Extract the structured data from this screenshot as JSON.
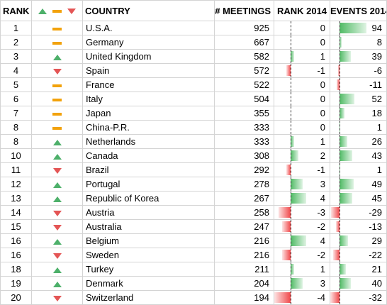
{
  "headers": {
    "rank": "RANK",
    "country": "COUNTRY",
    "meetings": "# MEETINGS",
    "rank_2014": "RANK 2014",
    "events_2014": "EVENTS 2014"
  },
  "colors": {
    "up": "#4db06a",
    "down": "#e45555",
    "same": "#f2a20c",
    "bar_pos": "#4fba64",
    "bar_neg": "#f0484a"
  },
  "rank_change_scale": {
    "min": -4,
    "max": 4
  },
  "events_change_scale": {
    "min": -32,
    "max": 94
  },
  "rows": [
    {
      "rank": "1",
      "trend": "same",
      "country": "U.S.A.",
      "meetings": "925",
      "rank_change": 0,
      "rank_change_label": "0",
      "events_change": 94,
      "events_change_label": "94"
    },
    {
      "rank": "2",
      "trend": "same",
      "country": "Germany",
      "meetings": "667",
      "rank_change": 0,
      "rank_change_label": "0",
      "events_change": 8,
      "events_change_label": "8"
    },
    {
      "rank": "3",
      "trend": "up",
      "country": "United Kingdom",
      "meetings": "582",
      "rank_change": 1,
      "rank_change_label": "1",
      "events_change": 39,
      "events_change_label": "39"
    },
    {
      "rank": "4",
      "trend": "down",
      "country": "Spain",
      "meetings": "572",
      "rank_change": -1,
      "rank_change_label": "-1",
      "events_change": -6,
      "events_change_label": "-6"
    },
    {
      "rank": "5",
      "trend": "same",
      "country": "France",
      "meetings": "522",
      "rank_change": 0,
      "rank_change_label": "0",
      "events_change": -11,
      "events_change_label": "-11"
    },
    {
      "rank": "6",
      "trend": "same",
      "country": "Italy",
      "meetings": "504",
      "rank_change": 0,
      "rank_change_label": "0",
      "events_change": 52,
      "events_change_label": "52"
    },
    {
      "rank": "7",
      "trend": "same",
      "country": "Japan",
      "meetings": "355",
      "rank_change": 0,
      "rank_change_label": "0",
      "events_change": 18,
      "events_change_label": "18"
    },
    {
      "rank": "8",
      "trend": "same",
      "country": "China-P.R.",
      "meetings": "333",
      "rank_change": 0,
      "rank_change_label": "0",
      "events_change": 1,
      "events_change_label": "1"
    },
    {
      "rank": "8",
      "trend": "up",
      "country": "Netherlands",
      "meetings": "333",
      "rank_change": 1,
      "rank_change_label": "1",
      "events_change": 26,
      "events_change_label": "26"
    },
    {
      "rank": "10",
      "trend": "up",
      "country": "Canada",
      "meetings": "308",
      "rank_change": 2,
      "rank_change_label": "2",
      "events_change": 43,
      "events_change_label": "43"
    },
    {
      "rank": "11",
      "trend": "down",
      "country": "Brazil",
      "meetings": "292",
      "rank_change": -1,
      "rank_change_label": "-1",
      "events_change": 1,
      "events_change_label": "1"
    },
    {
      "rank": "12",
      "trend": "up",
      "country": "Portugal",
      "meetings": "278",
      "rank_change": 3,
      "rank_change_label": "3",
      "events_change": 49,
      "events_change_label": "49"
    },
    {
      "rank": "13",
      "trend": "up",
      "country": "Republic of Korea",
      "meetings": "267",
      "rank_change": 4,
      "rank_change_label": "4",
      "events_change": 45,
      "events_change_label": "45"
    },
    {
      "rank": "14",
      "trend": "down",
      "country": "Austria",
      "meetings": "258",
      "rank_change": -3,
      "rank_change_label": "-3",
      "events_change": -29,
      "events_change_label": "-29"
    },
    {
      "rank": "15",
      "trend": "down",
      "country": "Australia",
      "meetings": "247",
      "rank_change": -2,
      "rank_change_label": "-2",
      "events_change": -13,
      "events_change_label": "-13"
    },
    {
      "rank": "16",
      "trend": "up",
      "country": "Belgium",
      "meetings": "216",
      "rank_change": 4,
      "rank_change_label": "4",
      "events_change": 29,
      "events_change_label": "29"
    },
    {
      "rank": "16",
      "trend": "down",
      "country": "Sweden",
      "meetings": "216",
      "rank_change": -2,
      "rank_change_label": "-2",
      "events_change": -22,
      "events_change_label": "-22"
    },
    {
      "rank": "18",
      "trend": "up",
      "country": "Turkey",
      "meetings": "211",
      "rank_change": 1,
      "rank_change_label": "1",
      "events_change": 21,
      "events_change_label": "21"
    },
    {
      "rank": "19",
      "trend": "up",
      "country": "Denmark",
      "meetings": "204",
      "rank_change": 3,
      "rank_change_label": "3",
      "events_change": 40,
      "events_change_label": "40"
    },
    {
      "rank": "20",
      "trend": "down",
      "country": "Switzerland",
      "meetings": "194",
      "rank_change": -4,
      "rank_change_label": "-4",
      "events_change": -32,
      "events_change_label": "-32"
    }
  ]
}
